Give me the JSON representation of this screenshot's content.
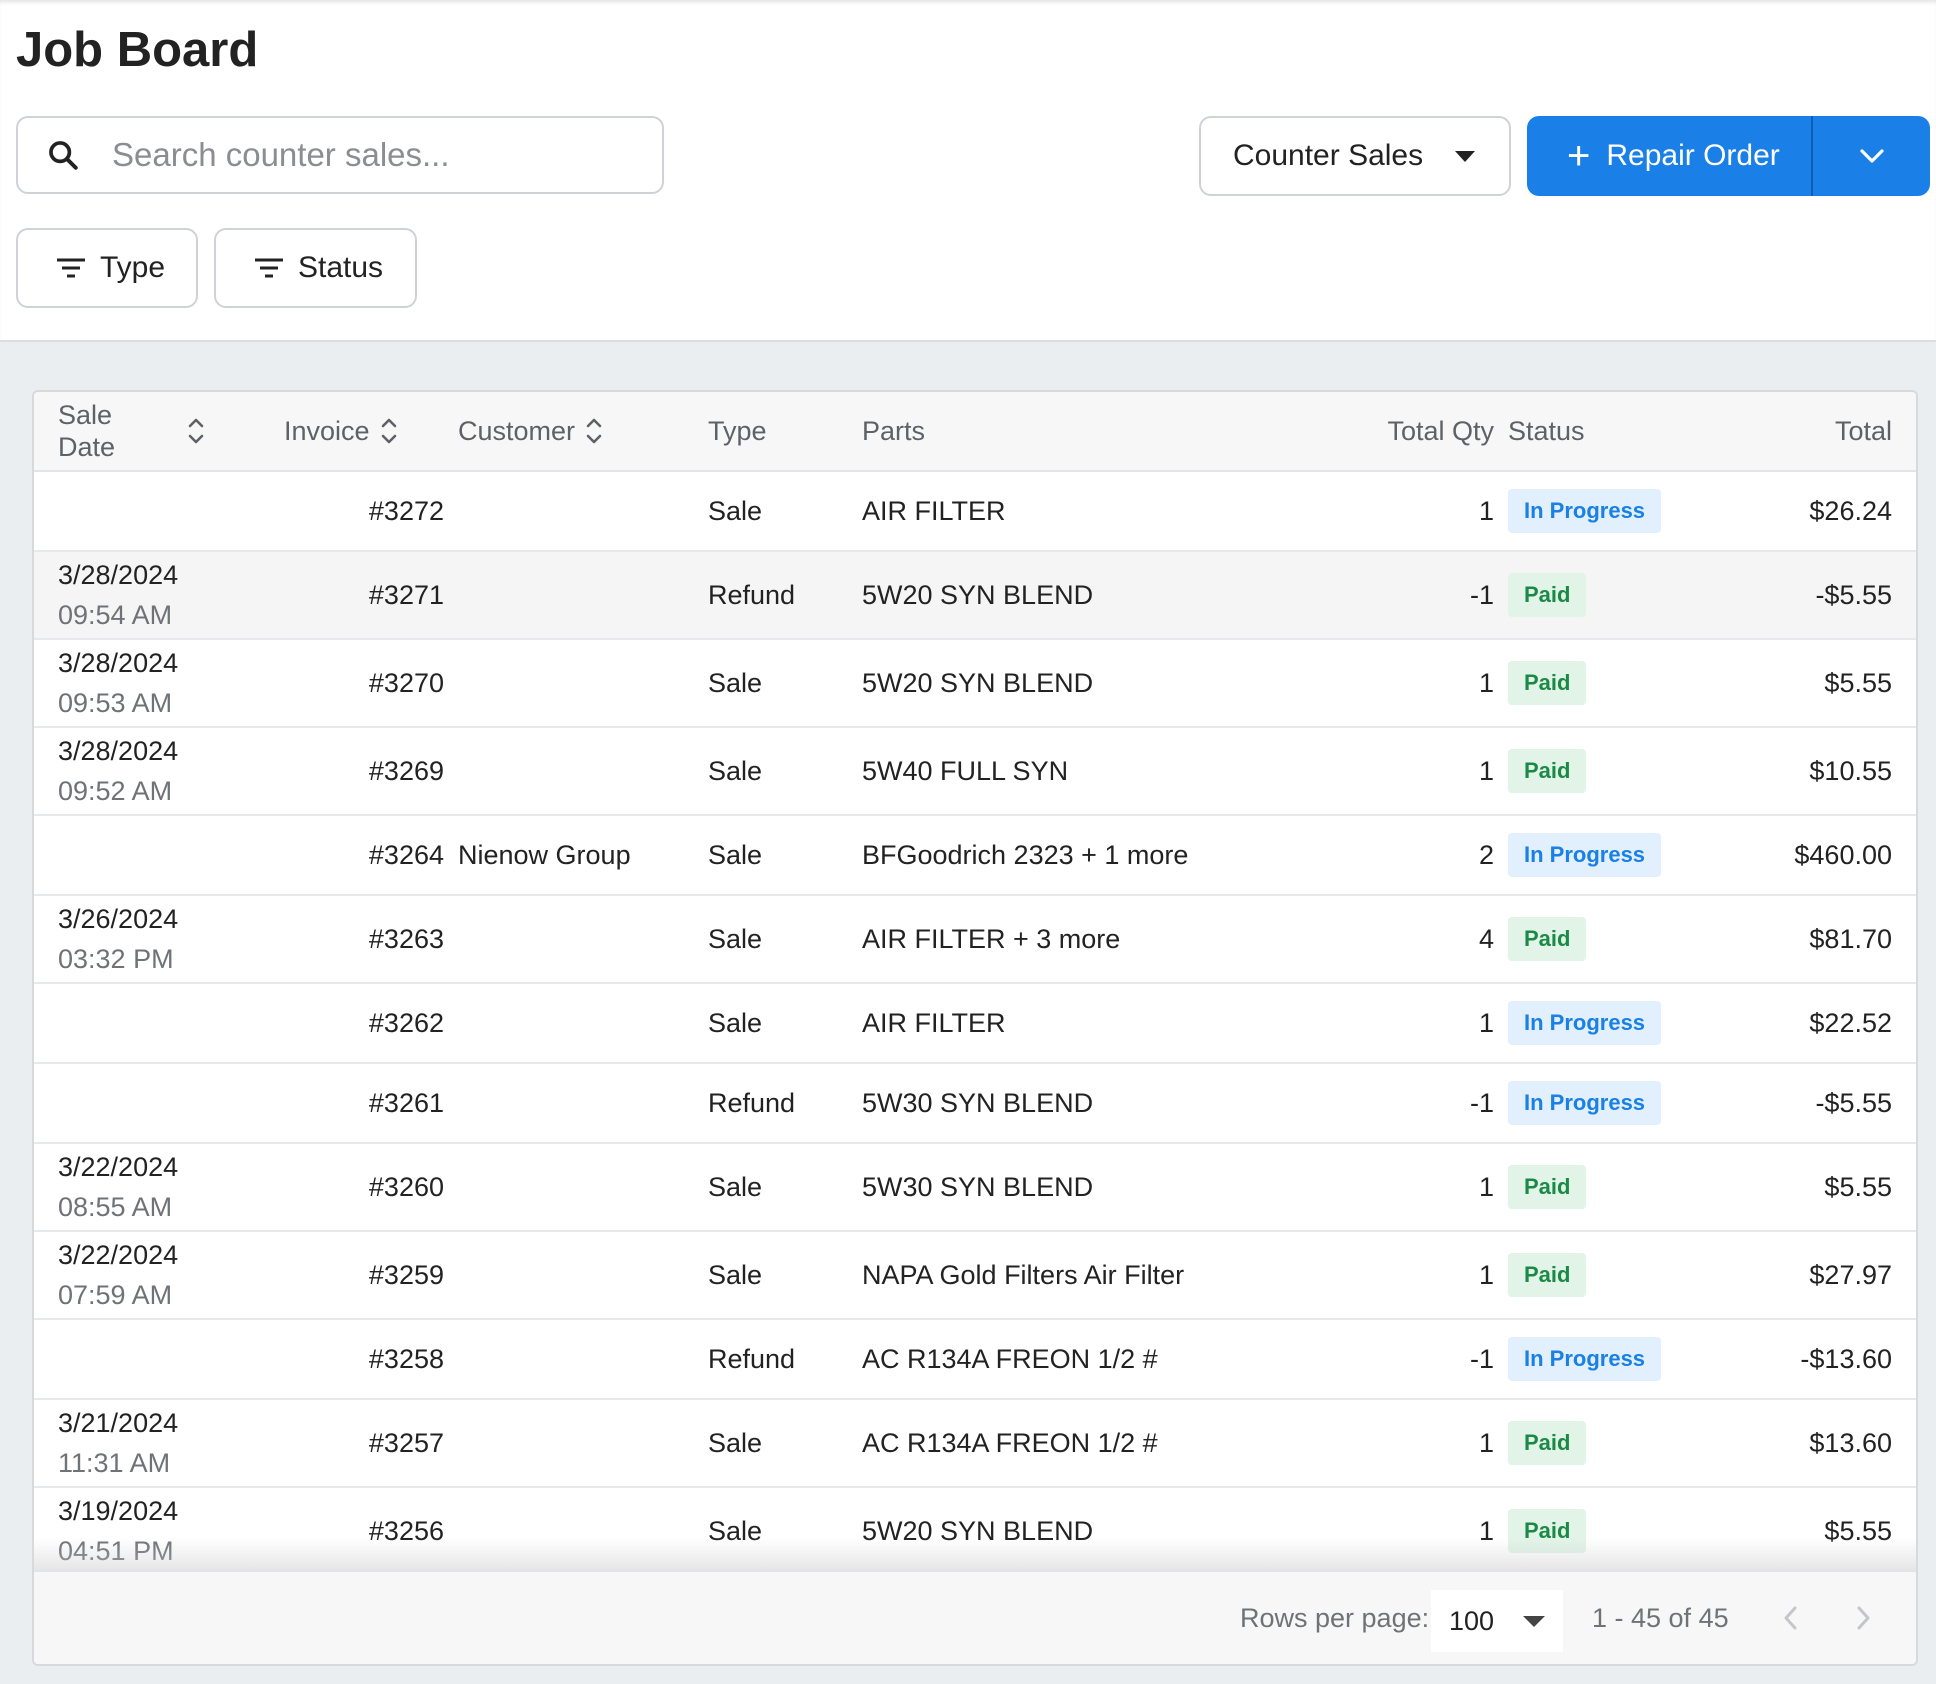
{
  "page": {
    "title": "Job Board"
  },
  "search": {
    "placeholder": "Search counter sales..."
  },
  "view_select": {
    "label": "Counter Sales"
  },
  "primary_action": {
    "label": "Repair Order"
  },
  "filters": {
    "type_label": "Type",
    "status_label": "Status"
  },
  "table": {
    "columns": {
      "sale_date_line1": "Sale",
      "sale_date_line2": "Date",
      "invoice": "Invoice",
      "customer": "Customer",
      "type": "Type",
      "parts": "Parts",
      "total_qty": "Total Qty",
      "status": "Status",
      "total": "Total"
    },
    "rows": [
      {
        "date": "",
        "time": "",
        "invoice": "#3272",
        "customer": "",
        "type": "Sale",
        "parts": "AIR FILTER",
        "qty": "1",
        "status": "In Progress",
        "total": "$26.24"
      },
      {
        "date": "3/28/2024",
        "time": "09:54 AM",
        "invoice": "#3271",
        "customer": "",
        "type": "Refund",
        "parts": "5W20 SYN BLEND",
        "qty": "-1",
        "status": "Paid",
        "total": "-$5.55"
      },
      {
        "date": "3/28/2024",
        "time": "09:53 AM",
        "invoice": "#3270",
        "customer": "",
        "type": "Sale",
        "parts": "5W20 SYN BLEND",
        "qty": "1",
        "status": "Paid",
        "total": "$5.55"
      },
      {
        "date": "3/28/2024",
        "time": "09:52 AM",
        "invoice": "#3269",
        "customer": "",
        "type": "Sale",
        "parts": "5W40 FULL SYN",
        "qty": "1",
        "status": "Paid",
        "total": "$10.55"
      },
      {
        "date": "",
        "time": "",
        "invoice": "#3264",
        "customer": "Nienow Group",
        "type": "Sale",
        "parts": "BFGoodrich 2323 + 1 more",
        "qty": "2",
        "status": "In Progress",
        "total": "$460.00"
      },
      {
        "date": "3/26/2024",
        "time": "03:32 PM",
        "invoice": "#3263",
        "customer": "",
        "type": "Sale",
        "parts": "AIR FILTER + 3 more",
        "qty": "4",
        "status": "Paid",
        "total": "$81.70"
      },
      {
        "date": "",
        "time": "",
        "invoice": "#3262",
        "customer": "",
        "type": "Sale",
        "parts": "AIR FILTER",
        "qty": "1",
        "status": "In Progress",
        "total": "$22.52"
      },
      {
        "date": "",
        "time": "",
        "invoice": "#3261",
        "customer": "",
        "type": "Refund",
        "parts": "5W30 SYN BLEND",
        "qty": "-1",
        "status": "In Progress",
        "total": "-$5.55"
      },
      {
        "date": "3/22/2024",
        "time": "08:55 AM",
        "invoice": "#3260",
        "customer": "",
        "type": "Sale",
        "parts": "5W30 SYN BLEND",
        "qty": "1",
        "status": "Paid",
        "total": "$5.55"
      },
      {
        "date": "3/22/2024",
        "time": "07:59 AM",
        "invoice": "#3259",
        "customer": "",
        "type": "Sale",
        "parts": "NAPA Gold Filters Air Filter",
        "qty": "1",
        "status": "Paid",
        "total": "$27.97"
      },
      {
        "date": "",
        "time": "",
        "invoice": "#3258",
        "customer": "",
        "type": "Refund",
        "parts": "AC R134A FREON 1/2 #",
        "qty": "-1",
        "status": "In Progress",
        "total": "-$13.60"
      },
      {
        "date": "3/21/2024",
        "time": "11:31 AM",
        "invoice": "#3257",
        "customer": "",
        "type": "Sale",
        "parts": "AC R134A FREON 1/2 #",
        "qty": "1",
        "status": "Paid",
        "total": "$13.60"
      },
      {
        "date": "3/19/2024",
        "time": "04:51 PM",
        "invoice": "#3256",
        "customer": "",
        "type": "Sale",
        "parts": "5W20 SYN BLEND",
        "qty": "1",
        "status": "Paid",
        "total": "$5.55"
      }
    ]
  },
  "pagination": {
    "rows_per_page_label": "Rows per page:",
    "rows_per_page": "100",
    "range": "1 - 45 of 45"
  },
  "colors": {
    "primary": "#1a7fe6",
    "in_progress_text": "#1a7fe6",
    "in_progress_bg": "#e1f0fc",
    "paid_text": "#1c8a47",
    "paid_bg": "#e2f4e8",
    "page_background": "#ebeef1"
  },
  "icons": {
    "search": "search-icon",
    "dropdown": "caret-down-icon",
    "add": "plus-icon",
    "split_menu": "chevron-down-icon",
    "filter": "filter-icon",
    "sort": "sort-icon",
    "prev_page": "chevron-left-icon",
    "next_page": "chevron-right-icon"
  }
}
